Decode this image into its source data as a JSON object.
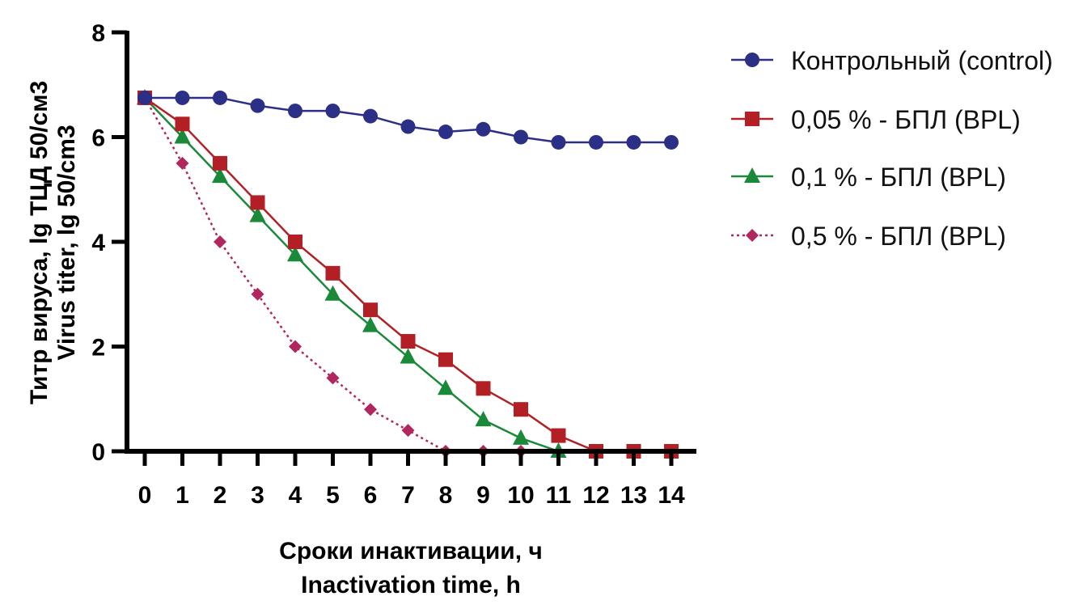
{
  "chart_data": {
    "type": "line",
    "title": "",
    "xlabel": [
      "Сроки инактивации, ч",
      "Inactivation time, h"
    ],
    "ylabel": [
      "Титр вируса, lg ТЦД 50/см3",
      "Virus titer, lg 50/cm3"
    ],
    "x": [
      0,
      1,
      2,
      3,
      4,
      5,
      6,
      7,
      8,
      9,
      10,
      11,
      12,
      13,
      14
    ],
    "xlim": [
      0,
      14
    ],
    "ylim": [
      0,
      8
    ],
    "yticks": [
      0,
      2,
      4,
      6,
      8
    ],
    "grid": false,
    "legend_position": "right",
    "series": [
      {
        "name": "Контрольный (control)",
        "color": "#2b2f86",
        "marker": "circle",
        "line_style": "solid",
        "values": [
          6.75,
          6.75,
          6.75,
          6.6,
          6.5,
          6.5,
          6.4,
          6.2,
          6.1,
          6.15,
          6.0,
          5.9,
          5.9,
          5.9,
          5.9
        ]
      },
      {
        "name": "0,05 % - БПЛ (BPL)",
        "color": "#b21f24",
        "marker": "square",
        "line_style": "solid",
        "values": [
          6.75,
          6.25,
          5.5,
          4.75,
          4.0,
          3.4,
          2.7,
          2.1,
          1.75,
          1.2,
          0.8,
          0.3,
          0,
          0,
          0
        ]
      },
      {
        "name": "0,1 % - БПЛ (BPL)",
        "color": "#1a8a3a",
        "marker": "triangle",
        "line_style": "solid",
        "values": [
          6.75,
          6.0,
          5.25,
          4.5,
          3.75,
          3.0,
          2.4,
          1.8,
          1.2,
          0.6,
          0.25,
          0,
          null,
          null,
          null
        ]
      },
      {
        "name": "0,5 %  - БПЛ (BPL)",
        "color": "#b0275f",
        "marker": "diamond",
        "line_style": "dotted",
        "values": [
          6.75,
          5.5,
          4.0,
          3.0,
          2.0,
          1.4,
          0.8,
          0.4,
          0,
          0,
          0,
          null,
          null,
          null,
          null
        ]
      }
    ]
  }
}
